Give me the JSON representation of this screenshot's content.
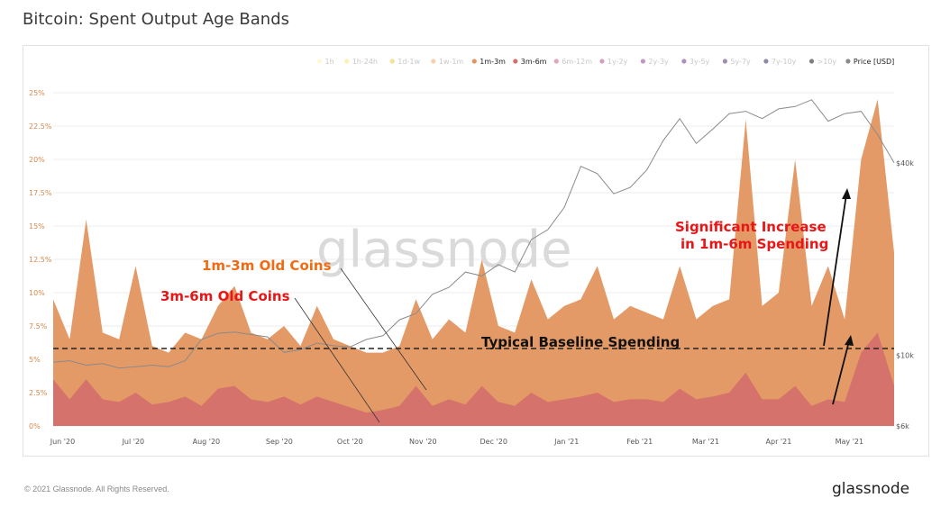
{
  "page": {
    "title": "Bitcoin: Spent Output Age Bands",
    "copyright": "© 2021 Glassnode. All Rights Reserved.",
    "brand": "glassnode",
    "watermark": "glassnode"
  },
  "colors": {
    "band_1m3m": "#e3955f",
    "band_3m6m": "#d3706b",
    "price_line": "#8a8a8a",
    "annotation_orange": "#f06b12",
    "annotation_red": "#e81616",
    "axis_text_orange": "#d9894d",
    "grid": "#eeeeee"
  },
  "legend": [
    {
      "label": "1h",
      "color": "#fff3a3",
      "active": false
    },
    {
      "label": "1h-24h",
      "color": "#f7e26b",
      "active": false
    },
    {
      "label": "1d-1w",
      "color": "#f1c232",
      "active": false
    },
    {
      "label": "1w-1m",
      "color": "#f0a35e",
      "active": false
    },
    {
      "label": "1m-3m",
      "color": "#e3955f",
      "active": true
    },
    {
      "label": "3m-6m",
      "color": "#d3706b",
      "active": true
    },
    {
      "label": "6m-12m",
      "color": "#c24d6f",
      "active": false
    },
    {
      "label": "1y-2y",
      "color": "#a6407e",
      "active": false
    },
    {
      "label": "2y-3y",
      "color": "#84307f",
      "active": false
    },
    {
      "label": "3y-5y",
      "color": "#5e2477",
      "active": false
    },
    {
      "label": "5y-7y",
      "color": "#3b1a6a",
      "active": false
    },
    {
      "label": "7y-10y",
      "color": "#231150",
      "active": false
    },
    {
      "label": ">10y",
      "color": "#000000",
      "active": false
    },
    {
      "label": "Price [USD]",
      "color": "#8a8a8a",
      "active": true
    }
  ],
  "annotations": {
    "old_1m3m": "1m-3m Old Coins",
    "old_3m6m": "3m-6m Old Coins",
    "increase_line1": "Significant Increase",
    "increase_line2": "in 1m-6m Spending",
    "baseline": "Typical Baseline Spending"
  },
  "chart_data": {
    "type": "area",
    "title": "Bitcoin: Spent Output Age Bands",
    "x_ticks": [
      "Jun '20",
      "Jul '20",
      "Aug '20",
      "Sep '20",
      "Oct '20",
      "Nov '20",
      "Dec '20",
      "Jan '21",
      "Feb '21",
      "Mar '21",
      "Apr '21",
      "May '21"
    ],
    "y_left": {
      "ticks": [
        "0%",
        "2.5%",
        "5%",
        "7.5%",
        "10%",
        "12.5%",
        "15%",
        "17.5%",
        "20%",
        "22.5%",
        "25%"
      ],
      "range": [
        0,
        25
      ],
      "unit": "%"
    },
    "y_right": {
      "ticks": [
        "$6k",
        "$10k",
        "$40k"
      ],
      "scale": "log"
    },
    "baseline_percent": 6,
    "x": [
      "2020-05-28",
      "2020-06-04",
      "2020-06-11",
      "2020-06-18",
      "2020-06-25",
      "2020-07-02",
      "2020-07-09",
      "2020-07-16",
      "2020-07-23",
      "2020-07-30",
      "2020-08-06",
      "2020-08-13",
      "2020-08-20",
      "2020-08-27",
      "2020-09-03",
      "2020-09-10",
      "2020-09-17",
      "2020-09-24",
      "2020-10-01",
      "2020-10-08",
      "2020-10-15",
      "2020-10-22",
      "2020-10-29",
      "2020-11-05",
      "2020-11-12",
      "2020-11-19",
      "2020-11-26",
      "2020-12-03",
      "2020-12-10",
      "2020-12-17",
      "2020-12-24",
      "2020-12-31",
      "2021-01-07",
      "2021-01-14",
      "2021-01-21",
      "2021-01-28",
      "2021-02-04",
      "2021-02-11",
      "2021-02-18",
      "2021-02-25",
      "2021-03-04",
      "2021-03-11",
      "2021-03-18",
      "2021-03-25",
      "2021-04-01",
      "2021-04-08",
      "2021-04-15",
      "2021-04-22",
      "2021-04-29",
      "2021-05-06",
      "2021-05-13",
      "2021-05-20"
    ],
    "series": [
      {
        "name": "1m-3m",
        "values": [
          9.5,
          6.5,
          15.5,
          7.0,
          6.5,
          12.0,
          6.0,
          5.5,
          7.0,
          6.5,
          9.0,
          10.5,
          7.0,
          6.5,
          7.5,
          6.0,
          9.0,
          6.5,
          6.0,
          5.5,
          5.5,
          6.0,
          9.5,
          6.5,
          8.0,
          7.0,
          12.5,
          7.5,
          7.0,
          11.0,
          8.0,
          9.0,
          9.5,
          12.0,
          8.0,
          9.0,
          8.5,
          8.0,
          12.0,
          8.0,
          9.0,
          9.5,
          23.0,
          9.0,
          10.0,
          20.0,
          9.0,
          12.0,
          8.0,
          20.0,
          24.5,
          13.0
        ]
      },
      {
        "name": "3m-6m",
        "values": [
          3.5,
          2.0,
          3.5,
          2.0,
          1.8,
          2.5,
          1.6,
          1.8,
          2.2,
          1.5,
          2.8,
          3.0,
          2.0,
          1.8,
          2.2,
          1.6,
          2.2,
          1.8,
          1.4,
          1.0,
          1.2,
          1.5,
          3.0,
          1.5,
          2.0,
          1.6,
          3.0,
          1.8,
          1.5,
          2.5,
          1.8,
          2.0,
          2.2,
          2.5,
          1.8,
          2.0,
          2.0,
          1.8,
          2.8,
          2.0,
          2.2,
          2.5,
          4.0,
          2.0,
          2.0,
          3.0,
          1.5,
          2.0,
          1.8,
          5.5,
          7.0,
          3.0
        ]
      },
      {
        "name": "Price [USD]",
        "values": [
          9500,
          9600,
          9300,
          9400,
          9100,
          9200,
          9300,
          9200,
          9600,
          11200,
          11700,
          11800,
          11600,
          11400,
          10200,
          10400,
          10900,
          10700,
          10600,
          11200,
          11500,
          12900,
          13500,
          15500,
          16300,
          18200,
          17700,
          19200,
          18200,
          23000,
          24700,
          29000,
          39000,
          37000,
          32000,
          33500,
          38000,
          47000,
          55000,
          46000,
          51000,
          57000,
          58000,
          55000,
          59000,
          60000,
          63000,
          54000,
          57000,
          58000,
          49000,
          40000
        ]
      }
    ]
  }
}
